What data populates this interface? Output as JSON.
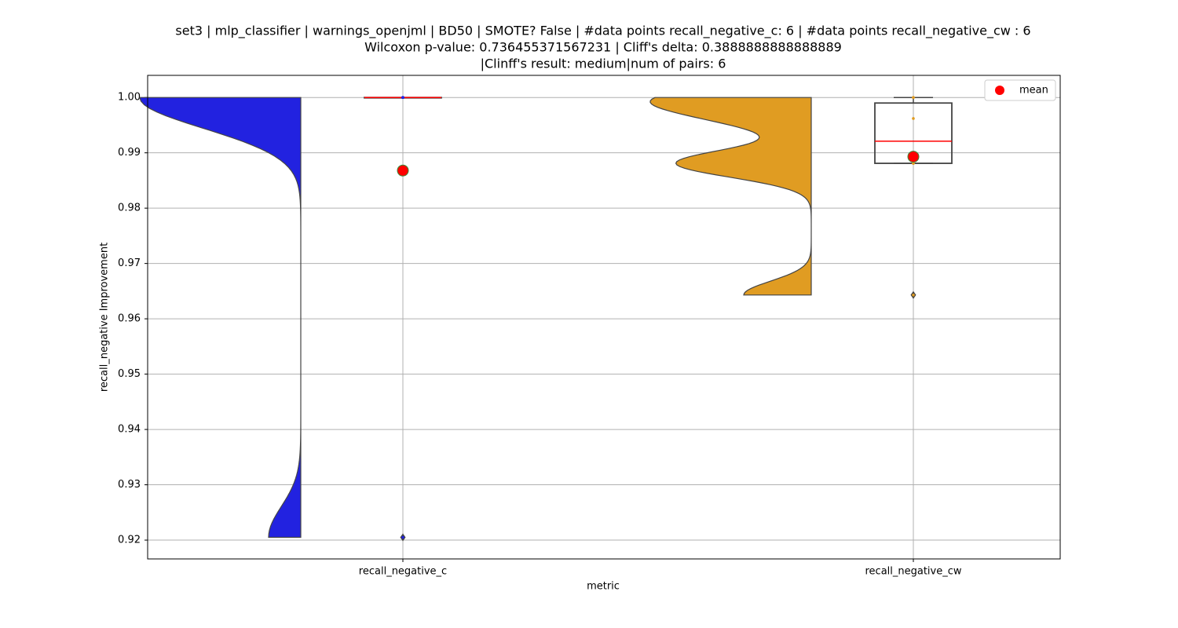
{
  "chart_data": {
    "type": "violin-box",
    "title": [
      "set3 | mlp_classifier | warnings_openjml | BD50 | SMOTE? False | #data points recall_negative_c: 6 | #data points recall_negative_cw : 6",
      "Wilcoxon p-value: 0.736455371567231 | Cliff's delta: 0.3888888888888889",
      "|Clinff's result: medium|num of pairs: 6"
    ],
    "x_label": "metric",
    "y_label": "recall_negative Improvement",
    "categories": [
      "recall_negative_c",
      "recall_negative_cw"
    ],
    "series": [
      {
        "color": "#2222e0",
        "points": [
          1.0,
          1.0,
          1.0,
          1.0,
          1.0,
          0.9205
        ],
        "q1": 1.0,
        "median": 1.0,
        "q3": 1.0,
        "whisker_low": 1.0,
        "whisker_high": 1.0,
        "outliers": [
          0.9205
        ],
        "mean": 0.9868
      },
      {
        "color": "#e09c22",
        "points": [
          0.9643,
          0.9881,
          0.9881,
          0.9962,
          1.0,
          1.0
        ],
        "q1": 0.9881,
        "median": 0.9921,
        "q3": 0.999,
        "whisker_low": 0.9881,
        "whisker_high": 1.0,
        "outliers": [
          0.9643
        ],
        "mean": 0.9893
      }
    ],
    "legend": {
      "label": "mean",
      "color": "#ff0000",
      "position": "upper right"
    },
    "ylim": [
      0.9166,
      1.004
    ],
    "yticks": [
      0.92,
      0.93,
      0.94,
      0.95,
      0.96,
      0.97,
      0.98,
      0.99,
      {
        "value": 1.0,
        "label": "1.00"
      }
    ],
    "grid": true
  }
}
